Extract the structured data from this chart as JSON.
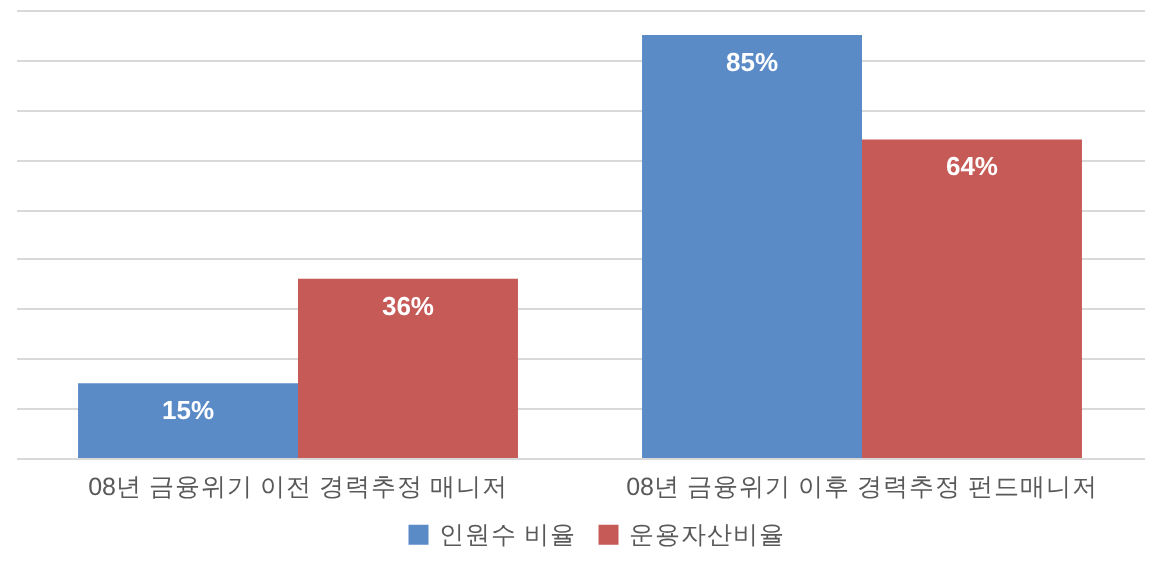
{
  "chart_data": {
    "type": "bar",
    "categories": [
      "08년 금융위기 이전 경력추정 매니저",
      "08년 금융위기 이후 경력추정 펀드매니저"
    ],
    "series": [
      {
        "name": "인원수 비율",
        "color": "#5b8bc7",
        "values": [
          15,
          85
        ],
        "value_labels": [
          "15%",
          "85%"
        ]
      },
      {
        "name": "운용자산비율",
        "color": "#c55a57",
        "values": [
          36,
          64
        ],
        "value_labels": [
          "36%",
          "64%"
        ]
      }
    ],
    "grid": "y",
    "legend": "bottom"
  }
}
